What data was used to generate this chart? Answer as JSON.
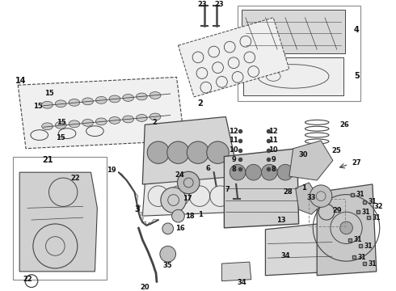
{
  "background_color": "#ffffff",
  "line_color": "#444444",
  "text_color": "#111111",
  "fig_width": 4.9,
  "fig_height": 3.6,
  "dpi": 100
}
